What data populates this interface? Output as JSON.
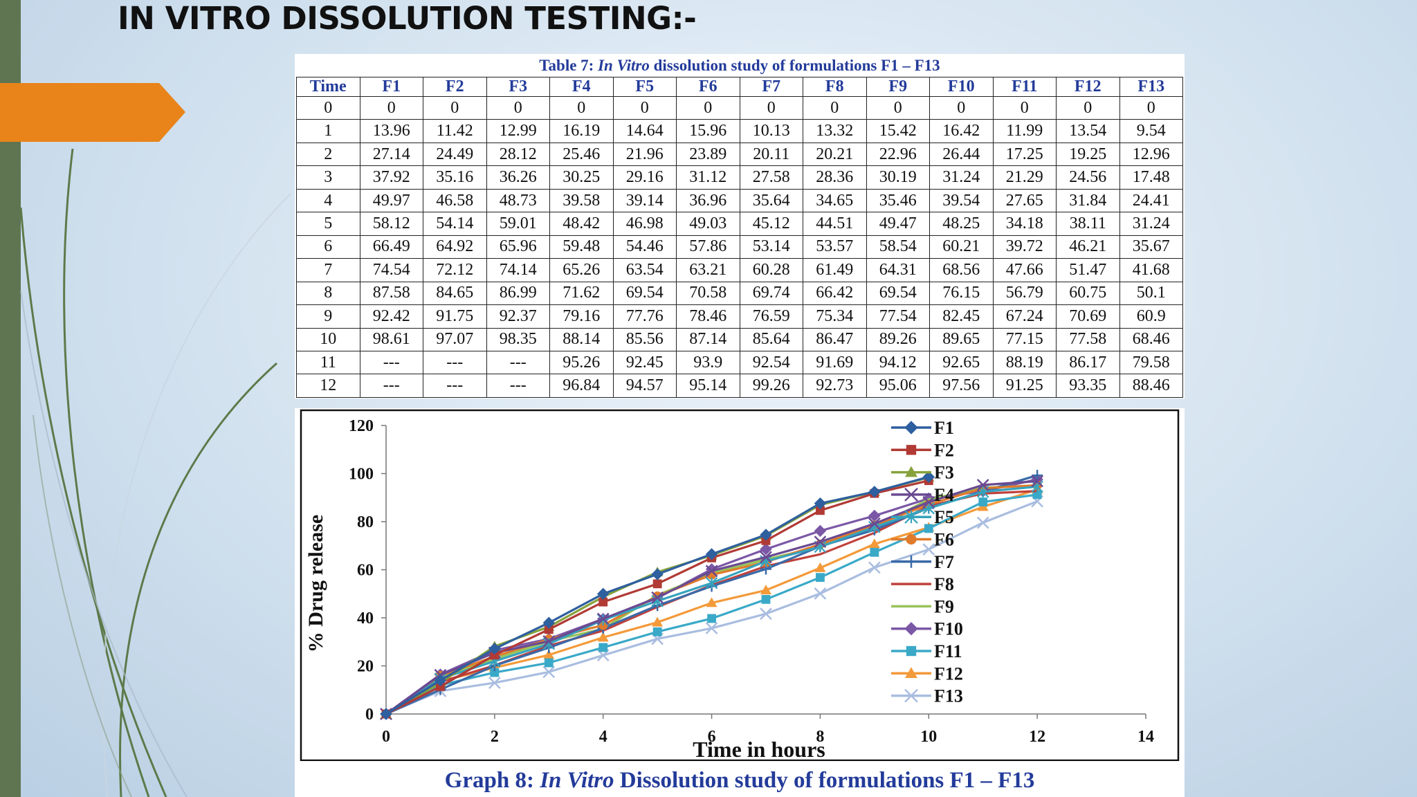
{
  "title": "IN VITRO DISSOLUTION TESTING:-",
  "table": {
    "caption_prefix": "Table 7: ",
    "caption_italic": "In Vitro",
    "caption_suffix": " dissolution study of formulations F1 – F13",
    "headers": [
      "Time",
      "F1",
      "F2",
      "F3",
      "F4",
      "F5",
      "F6",
      "F7",
      "F8",
      "F9",
      "F10",
      "F11",
      "F12",
      "F13"
    ],
    "rows": [
      [
        "0",
        "0",
        "0",
        "0",
        "0",
        "0",
        "0",
        "0",
        "0",
        "0",
        "0",
        "0",
        "0",
        "0"
      ],
      [
        "1",
        "13.96",
        "11.42",
        "12.99",
        "16.19",
        "14.64",
        "15.96",
        "10.13",
        "13.32",
        "15.42",
        "16.42",
        "11.99",
        "13.54",
        "9.54"
      ],
      [
        "2",
        "27.14",
        "24.49",
        "28.12",
        "25.46",
        "21.96",
        "23.89",
        "20.11",
        "20.21",
        "22.96",
        "26.44",
        "17.25",
        "19.25",
        "12.96"
      ],
      [
        "3",
        "37.92",
        "35.16",
        "36.26",
        "30.25",
        "29.16",
        "31.12",
        "27.58",
        "28.36",
        "30.19",
        "31.24",
        "21.29",
        "24.56",
        "17.48"
      ],
      [
        "4",
        "49.97",
        "46.58",
        "48.73",
        "39.58",
        "39.14",
        "36.96",
        "35.64",
        "34.65",
        "35.46",
        "39.54",
        "27.65",
        "31.84",
        "24.41"
      ],
      [
        "5",
        "58.12",
        "54.14",
        "59.01",
        "48.42",
        "46.98",
        "49.03",
        "45.12",
        "44.51",
        "49.47",
        "48.25",
        "34.18",
        "38.11",
        "31.24"
      ],
      [
        "6",
        "66.49",
        "64.92",
        "65.96",
        "59.48",
        "54.46",
        "57.86",
        "53.14",
        "53.57",
        "58.54",
        "60.21",
        "39.72",
        "46.21",
        "35.67"
      ],
      [
        "7",
        "74.54",
        "72.12",
        "74.14",
        "65.26",
        "63.54",
        "63.21",
        "60.28",
        "61.49",
        "64.31",
        "68.56",
        "47.66",
        "51.47",
        "41.68"
      ],
      [
        "8",
        "87.58",
        "84.65",
        "86.99",
        "71.62",
        "69.54",
        "70.58",
        "69.74",
        "66.42",
        "69.54",
        "76.15",
        "56.79",
        "60.75",
        "50.1"
      ],
      [
        "9",
        "92.42",
        "91.75",
        "92.37",
        "79.16",
        "77.76",
        "78.46",
        "76.59",
        "75.34",
        "77.54",
        "82.45",
        "67.24",
        "70.69",
        "60.9"
      ],
      [
        "10",
        "98.61",
        "97.07",
        "98.35",
        "88.14",
        "85.56",
        "87.14",
        "85.64",
        "86.47",
        "89.26",
        "89.65",
        "77.15",
        "77.58",
        "68.46"
      ],
      [
        "11",
        "---",
        "---",
        "---",
        "95.26",
        "92.45",
        "93.9",
        "92.54",
        "91.69",
        "94.12",
        "92.65",
        "88.19",
        "86.17",
        "79.58"
      ],
      [
        "12",
        "---",
        "---",
        "---",
        "96.84",
        "94.57",
        "95.14",
        "99.26",
        "92.73",
        "95.06",
        "97.56",
        "91.25",
        "93.35",
        "88.46"
      ]
    ]
  },
  "chart_data": {
    "type": "line",
    "title": "",
    "caption_prefix": "Graph 8: ",
    "caption_italic": "In Vitro",
    "caption_suffix": " Dissolution study of formulations F1 – F13",
    "xlabel": "Time in hours",
    "ylabel": "% Drug release",
    "xlim": [
      0,
      14
    ],
    "ylim": [
      0,
      120
    ],
    "x_ticks": [
      0,
      2,
      4,
      6,
      8,
      10,
      12,
      14
    ],
    "y_ticks": [
      0,
      20,
      40,
      60,
      80,
      100,
      120
    ],
    "legend_position": "right",
    "grid": false,
    "x": [
      0,
      1,
      2,
      3,
      4,
      5,
      6,
      7,
      8,
      9,
      10,
      11,
      12
    ],
    "series": [
      {
        "name": "F1",
        "color": "#2e5f9e",
        "marker": "diamond",
        "values": [
          0,
          13.96,
          27.14,
          37.92,
          49.97,
          58.12,
          66.49,
          74.54,
          87.58,
          92.42,
          98.61,
          null,
          null
        ]
      },
      {
        "name": "F2",
        "color": "#b13a35",
        "marker": "square",
        "values": [
          0,
          11.42,
          24.49,
          35.16,
          46.58,
          54.14,
          64.92,
          72.12,
          84.65,
          91.75,
          97.07,
          null,
          null
        ]
      },
      {
        "name": "F3",
        "color": "#86a23b",
        "marker": "triangle",
        "values": [
          0,
          12.99,
          28.12,
          36.26,
          48.73,
          59.01,
          65.96,
          74.14,
          86.99,
          92.37,
          98.35,
          null,
          null
        ]
      },
      {
        "name": "F4",
        "color": "#6a4a92",
        "marker": "x",
        "values": [
          0,
          16.19,
          25.46,
          30.25,
          39.58,
          48.42,
          59.48,
          65.26,
          71.62,
          79.16,
          88.14,
          95.26,
          96.84
        ]
      },
      {
        "name": "F5",
        "color": "#36a3bd",
        "marker": "star",
        "values": [
          0,
          14.64,
          21.96,
          29.16,
          39.14,
          46.98,
          54.46,
          63.54,
          69.54,
          77.76,
          85.56,
          92.45,
          94.57
        ]
      },
      {
        "name": "F6",
        "color": "#e07b2b",
        "marker": "circle",
        "values": [
          0,
          15.96,
          23.89,
          31.12,
          36.96,
          49.03,
          57.86,
          63.21,
          70.58,
          78.46,
          87.14,
          93.9,
          95.14
        ]
      },
      {
        "name": "F7",
        "color": "#3a6aa8",
        "marker": "plus",
        "values": [
          0,
          10.13,
          20.11,
          27.58,
          35.64,
          45.12,
          53.14,
          60.28,
          69.74,
          76.59,
          85.64,
          92.54,
          99.26
        ]
      },
      {
        "name": "F8",
        "color": "#c0413c",
        "marker": "none",
        "values": [
          0,
          13.32,
          20.21,
          28.36,
          34.65,
          44.51,
          53.57,
          61.49,
          66.42,
          75.34,
          86.47,
          91.69,
          92.73
        ]
      },
      {
        "name": "F9",
        "color": "#98c35a",
        "marker": "none",
        "values": [
          0,
          15.42,
          22.96,
          30.19,
          35.46,
          49.47,
          58.54,
          64.31,
          69.54,
          77.54,
          89.26,
          94.12,
          95.06
        ]
      },
      {
        "name": "F10",
        "color": "#7b58a6",
        "marker": "diamond",
        "values": [
          0,
          16.42,
          26.44,
          31.24,
          39.54,
          48.25,
          60.21,
          68.56,
          76.15,
          82.45,
          89.65,
          92.65,
          97.56
        ]
      },
      {
        "name": "F11",
        "color": "#3aa9c8",
        "marker": "square",
        "values": [
          0,
          11.99,
          17.25,
          21.29,
          27.65,
          34.18,
          39.72,
          47.66,
          56.79,
          67.24,
          77.15,
          88.19,
          91.25
        ]
      },
      {
        "name": "F12",
        "color": "#f39a3a",
        "marker": "triangle",
        "values": [
          0,
          13.54,
          19.25,
          24.56,
          31.84,
          38.11,
          46.21,
          51.47,
          60.75,
          70.69,
          77.58,
          86.17,
          93.35
        ]
      },
      {
        "name": "F13",
        "color": "#a9bde0",
        "marker": "x",
        "values": [
          0,
          9.54,
          12.96,
          17.48,
          24.41,
          31.24,
          35.67,
          41.68,
          50.1,
          60.9,
          68.46,
          79.58,
          88.46
        ]
      }
    ]
  },
  "colors": {
    "accent_orange": "#e8841a",
    "left_bar": "#5f7552",
    "caption_blue": "#233b9a"
  }
}
